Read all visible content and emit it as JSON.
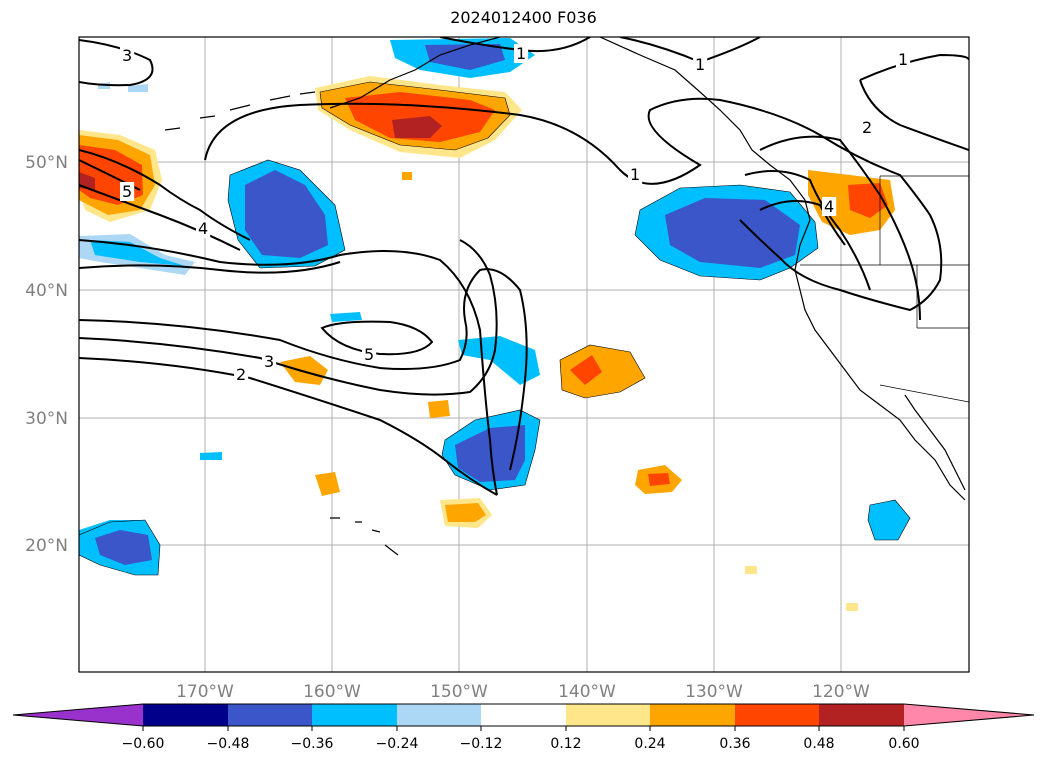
{
  "title": "2024012400 F036",
  "map": {
    "lat_labels": [
      "50°N",
      "40°N",
      "30°N",
      "20°N"
    ],
    "lon_labels": [
      "170°W",
      "160°W",
      "150°W",
      "140°W",
      "130°W",
      "120°W"
    ],
    "contour_labels": [
      "3",
      "1",
      "1",
      "1",
      "2",
      "5",
      "4",
      "1",
      "4",
      "5",
      "3",
      "2"
    ]
  },
  "colorbar": {
    "ticks": [
      "−0.60",
      "−0.48",
      "−0.36",
      "−0.24",
      "−0.12",
      "0.12",
      "0.24",
      "0.36",
      "0.48",
      "0.60"
    ],
    "colors": [
      "#9932cc",
      "#00008b",
      "#3a56c8",
      "#00bfff",
      "#add8f5",
      "#ffffff",
      "#ffe68a",
      "#ffa500",
      "#ff4500",
      "#b22222",
      "#ff88aa"
    ]
  }
}
